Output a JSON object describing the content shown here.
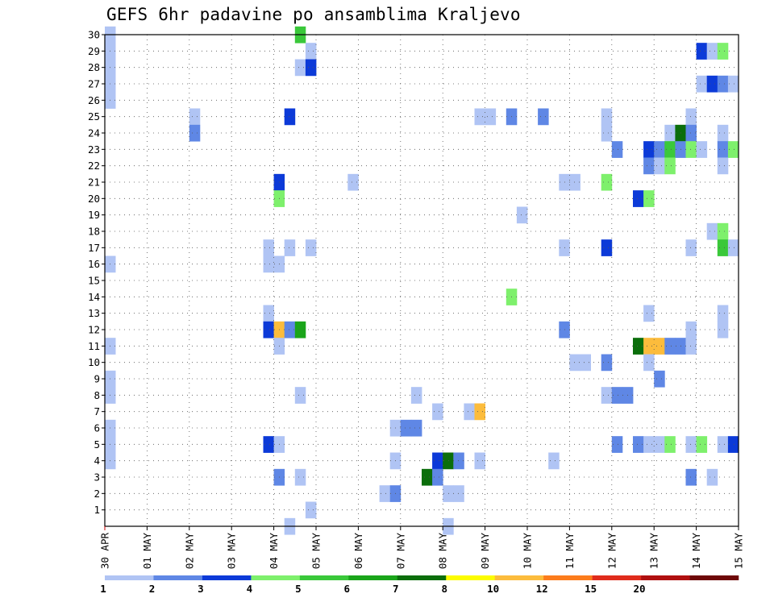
{
  "chart_data": {
    "type": "heatmap",
    "title": "GEFS 6hr padavine po ansamblima Kraljevo",
    "xlabel": "",
    "ylabel": "",
    "x_tick_labels": [
      "30 APR",
      "01 MAY",
      "02 MAY",
      "03 MAY",
      "04 MAY",
      "05 MAY",
      "06 MAY",
      "07 MAY",
      "08 MAY",
      "09 MAY",
      "10 MAY",
      "11 MAY",
      "12 MAY",
      "13 MAY",
      "14 MAY",
      "15 MAY"
    ],
    "x_unit": "6-hour step (day index + 0.25*step) from 30 APR",
    "y_tick_labels": [
      "1",
      "2",
      "3",
      "4",
      "5",
      "6",
      "7",
      "8",
      "9",
      "10",
      "11",
      "12",
      "13",
      "14",
      "15",
      "16",
      "17",
      "18",
      "19",
      "20",
      "21",
      "22",
      "23",
      "24",
      "25",
      "26",
      "27",
      "28",
      "29",
      "30"
    ],
    "yrange": [
      0,
      30
    ],
    "xrange": [
      0,
      15
    ],
    "grid": true,
    "colorbar": {
      "labels": [
        "1",
        "2",
        "3",
        "4",
        "5",
        "6",
        "7",
        "8",
        "10",
        "12",
        "15",
        "20"
      ],
      "colors": [
        "#b0c4f4",
        "#5f87e5",
        "#0c3ad8",
        "#7ef06c",
        "#3ac83a",
        "#1aa51a",
        "#0b6e0b",
        "#fcfc00",
        "#fcbc3c",
        "#fc7c1c",
        "#e02c1c",
        "#b01010",
        "#6e0808"
      ]
    },
    "cells": [
      {
        "member": 30,
        "step": 0,
        "value": 1.2
      },
      {
        "member": 29,
        "step": 0,
        "value": 1.2
      },
      {
        "member": 28,
        "step": 0,
        "value": 1.2
      },
      {
        "member": 27,
        "step": 0,
        "value": 1.2
      },
      {
        "member": 26,
        "step": 0,
        "value": 1.2
      },
      {
        "member": 30,
        "step": 18,
        "value": 5
      },
      {
        "member": 29,
        "step": 19,
        "value": 1.2
      },
      {
        "member": 29,
        "step": 56,
        "value": 3
      },
      {
        "member": 29,
        "step": 57,
        "value": 1.2
      },
      {
        "member": 29,
        "step": 58,
        "value": 4
      },
      {
        "member": 28,
        "step": 18,
        "value": 1.2
      },
      {
        "member": 28,
        "step": 19,
        "value": 3
      },
      {
        "member": 27,
        "step": 56,
        "value": 1.2
      },
      {
        "member": 27,
        "step": 57,
        "value": 3
      },
      {
        "member": 27,
        "step": 58,
        "value": 2
      },
      {
        "member": 27,
        "step": 59,
        "value": 1.2
      },
      {
        "member": 25,
        "step": 8,
        "value": 1.2
      },
      {
        "member": 25,
        "step": 17,
        "value": 3
      },
      {
        "member": 25,
        "step": 35,
        "value": 1.2
      },
      {
        "member": 25,
        "step": 36,
        "value": 1.2
      },
      {
        "member": 25,
        "step": 38,
        "value": 2
      },
      {
        "member": 25,
        "step": 41,
        "value": 2
      },
      {
        "member": 25,
        "step": 47,
        "value": 1.2
      },
      {
        "member": 25,
        "step": 55,
        "value": 1.2
      },
      {
        "member": 24,
        "step": 8,
        "value": 2
      },
      {
        "member": 24,
        "step": 47,
        "value": 1.2
      },
      {
        "member": 24,
        "step": 53,
        "value": 1.2
      },
      {
        "member": 24,
        "step": 54,
        "value": 7
      },
      {
        "member": 24,
        "step": 55,
        "value": 2
      },
      {
        "member": 24,
        "step": 58,
        "value": 1.2
      },
      {
        "member": 23,
        "step": 48,
        "value": 2
      },
      {
        "member": 23,
        "step": 51,
        "value": 3
      },
      {
        "member": 23,
        "step": 52,
        "value": 2
      },
      {
        "member": 23,
        "step": 53,
        "value": 5
      },
      {
        "member": 23,
        "step": 54,
        "value": 2
      },
      {
        "member": 23,
        "step": 55,
        "value": 4
      },
      {
        "member": 23,
        "step": 56,
        "value": 1.2
      },
      {
        "member": 23,
        "step": 58,
        "value": 2
      },
      {
        "member": 23,
        "step": 59,
        "value": 4
      },
      {
        "member": 22,
        "step": 51,
        "value": 2
      },
      {
        "member": 22,
        "step": 52,
        "value": 1.2
      },
      {
        "member": 22,
        "step": 53,
        "value": 4
      },
      {
        "member": 22,
        "step": 58,
        "value": 1.2
      },
      {
        "member": 21,
        "step": 16,
        "value": 3
      },
      {
        "member": 21,
        "step": 23,
        "value": 1.2
      },
      {
        "member": 21,
        "step": 43,
        "value": 1.2
      },
      {
        "member": 21,
        "step": 44,
        "value": 1.2
      },
      {
        "member": 21,
        "step": 47,
        "value": 4
      },
      {
        "member": 20,
        "step": 16,
        "value": 4
      },
      {
        "member": 20,
        "step": 50,
        "value": 3
      },
      {
        "member": 20,
        "step": 51,
        "value": 4
      },
      {
        "member": 19,
        "step": 39,
        "value": 1.2
      },
      {
        "member": 18,
        "step": 57,
        "value": 1.2
      },
      {
        "member": 18,
        "step": 58,
        "value": 4
      },
      {
        "member": 17,
        "step": 15,
        "value": 1.2
      },
      {
        "member": 17,
        "step": 17,
        "value": 1.2
      },
      {
        "member": 17,
        "step": 19,
        "value": 1.2
      },
      {
        "member": 17,
        "step": 43,
        "value": 1.2
      },
      {
        "member": 17,
        "step": 47,
        "value": 3
      },
      {
        "member": 17,
        "step": 55,
        "value": 1.2
      },
      {
        "member": 17,
        "step": 58,
        "value": 5
      },
      {
        "member": 17,
        "step": 59,
        "value": 1.2
      },
      {
        "member": 16,
        "step": 15,
        "value": 1.2
      },
      {
        "member": 16,
        "step": 16,
        "value": 1.2
      },
      {
        "member": 16,
        "step": 0,
        "value": 1.2
      },
      {
        "member": 14,
        "step": 38,
        "value": 4
      },
      {
        "member": 13,
        "step": 15,
        "value": 1.2
      },
      {
        "member": 13,
        "step": 51,
        "value": 1.2
      },
      {
        "member": 13,
        "step": 58,
        "value": 1.2
      },
      {
        "member": 12,
        "step": 15,
        "value": 3
      },
      {
        "member": 12,
        "step": 16,
        "value": 10.5
      },
      {
        "member": 12,
        "step": 17,
        "value": 2
      },
      {
        "member": 12,
        "step": 18,
        "value": 6.5
      },
      {
        "member": 12,
        "step": 43,
        "value": 2
      },
      {
        "member": 12,
        "step": 55,
        "value": 1.2
      },
      {
        "member": 12,
        "step": 58,
        "value": 1.2
      },
      {
        "member": 11,
        "step": 0,
        "value": 1.2
      },
      {
        "member": 11,
        "step": 16,
        "value": 1.2
      },
      {
        "member": 11,
        "step": 50,
        "value": 7.5
      },
      {
        "member": 11,
        "step": 51,
        "value": 10.5
      },
      {
        "member": 11,
        "step": 52,
        "value": 10.5
      },
      {
        "member": 11,
        "step": 53,
        "value": 2
      },
      {
        "member": 11,
        "step": 54,
        "value": 2
      },
      {
        "member": 11,
        "step": 55,
        "value": 1.2
      },
      {
        "member": 10,
        "step": 44,
        "value": 1.2
      },
      {
        "member": 10,
        "step": 45,
        "value": 1.2
      },
      {
        "member": 10,
        "step": 47,
        "value": 2
      },
      {
        "member": 10,
        "step": 51,
        "value": 1.2
      },
      {
        "member": 9,
        "step": 0,
        "value": 1.2
      },
      {
        "member": 9,
        "step": 52,
        "value": 2
      },
      {
        "member": 8,
        "step": 0,
        "value": 1.2
      },
      {
        "member": 8,
        "step": 18,
        "value": 1.2
      },
      {
        "member": 8,
        "step": 29,
        "value": 1.2
      },
      {
        "member": 8,
        "step": 47,
        "value": 1.2
      },
      {
        "member": 8,
        "step": 48,
        "value": 2
      },
      {
        "member": 8,
        "step": 49,
        "value": 2
      },
      {
        "member": 7,
        "step": 31,
        "value": 1.2
      },
      {
        "member": 7,
        "step": 34,
        "value": 1.2
      },
      {
        "member": 7,
        "step": 35,
        "value": 10.5
      },
      {
        "member": 6,
        "step": 0,
        "value": 1.2
      },
      {
        "member": 6,
        "step": 27,
        "value": 1.2
      },
      {
        "member": 6,
        "step": 28,
        "value": 2
      },
      {
        "member": 6,
        "step": 29,
        "value": 2
      },
      {
        "member": 5,
        "step": 0,
        "value": 1.2
      },
      {
        "member": 5,
        "step": 15,
        "value": 3
      },
      {
        "member": 5,
        "step": 16,
        "value": 1.2
      },
      {
        "member": 5,
        "step": 48,
        "value": 2
      },
      {
        "member": 5,
        "step": 50,
        "value": 2
      },
      {
        "member": 5,
        "step": 51,
        "value": 1.2
      },
      {
        "member": 5,
        "step": 52,
        "value": 1.2
      },
      {
        "member": 5,
        "step": 53,
        "value": 4
      },
      {
        "member": 5,
        "step": 55,
        "value": 1.2
      },
      {
        "member": 5,
        "step": 56,
        "value": 4
      },
      {
        "member": 5,
        "step": 58,
        "value": 1.2
      },
      {
        "member": 5,
        "step": 59,
        "value": 3
      },
      {
        "member": 4,
        "step": 0,
        "value": 1.2
      },
      {
        "member": 4,
        "step": 27,
        "value": 1.2
      },
      {
        "member": 4,
        "step": 31,
        "value": 3
      },
      {
        "member": 4,
        "step": 32,
        "value": 7.5
      },
      {
        "member": 4,
        "step": 33,
        "value": 2
      },
      {
        "member": 4,
        "step": 35,
        "value": 1.2
      },
      {
        "member": 4,
        "step": 42,
        "value": 1.2
      },
      {
        "member": 3,
        "step": 16,
        "value": 2
      },
      {
        "member": 3,
        "step": 18,
        "value": 1.2
      },
      {
        "member": 3,
        "step": 30,
        "value": 7.5
      },
      {
        "member": 3,
        "step": 31,
        "value": 2
      },
      {
        "member": 3,
        "step": 55,
        "value": 2
      },
      {
        "member": 3,
        "step": 57,
        "value": 1.2
      },
      {
        "member": 2,
        "step": 26,
        "value": 1.2
      },
      {
        "member": 2,
        "step": 27,
        "value": 2
      },
      {
        "member": 2,
        "step": 32,
        "value": 1.2
      },
      {
        "member": 2,
        "step": 33,
        "value": 1.2
      },
      {
        "member": 1,
        "step": 19,
        "value": 1.2
      },
      {
        "member": 0,
        "step": 17,
        "value": 1.2
      },
      {
        "member": 0,
        "step": 32,
        "value": 1.2
      }
    ]
  }
}
